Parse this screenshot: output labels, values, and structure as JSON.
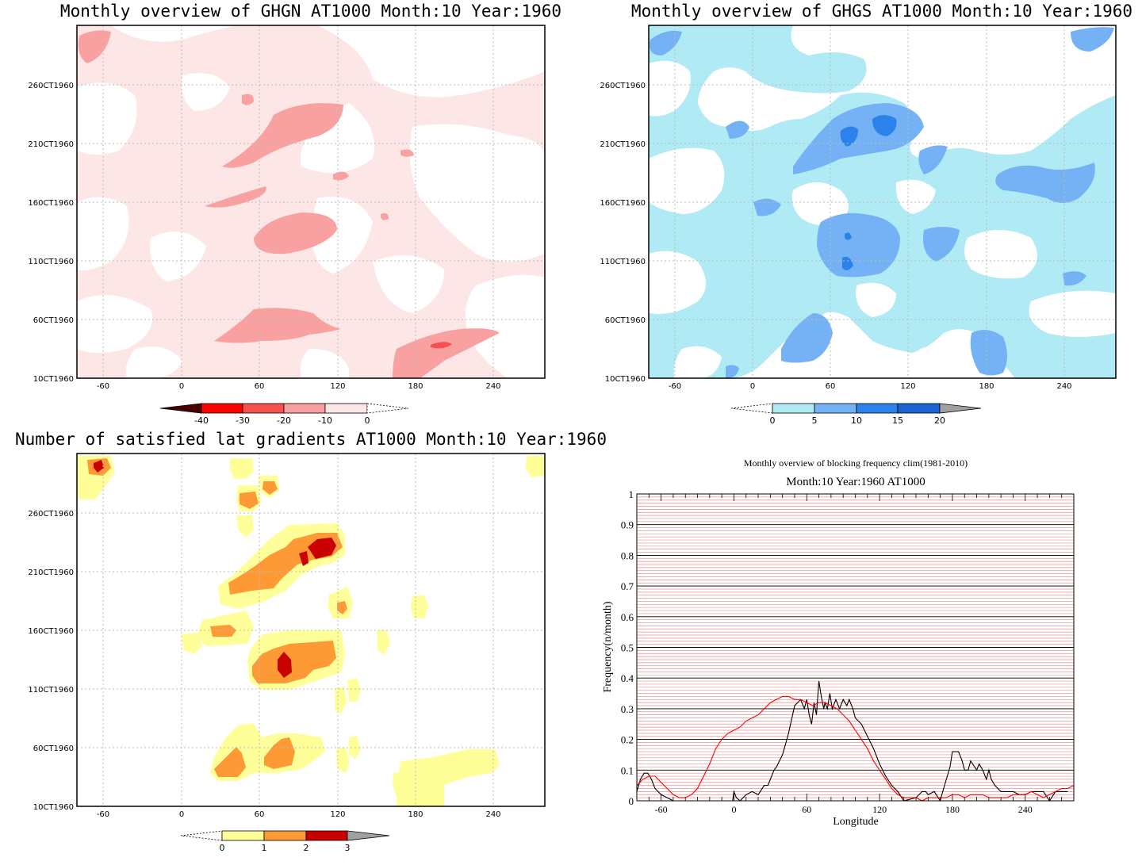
{
  "chart_data": [
    {
      "type": "heatmap",
      "title": "Monthly overview of GHGN AT1000 Month:10 Year:1960",
      "x_ticks": [
        -60,
        0,
        60,
        120,
        180,
        240
      ],
      "xlim": [
        -72,
        288
      ],
      "y_ticks": [
        "10CT1960",
        "60CT1960",
        "110CT1960",
        "160CT1960",
        "210CT1960",
        "260CT1960"
      ],
      "ylim": [
        1,
        31
      ],
      "colorbar": {
        "labels": [
          "-40",
          "-30",
          "-20",
          "-10",
          "0"
        ],
        "colors": [
          "#4a0000",
          "#ff0000",
          "#f65050",
          "#f9a0a0",
          "#fde6e6",
          "#ffffff"
        ]
      },
      "grid": true
    },
    {
      "type": "heatmap",
      "title": "Monthly overview of GHGS AT1000 Month:10 Year:1960",
      "x_ticks": [
        -60,
        0,
        60,
        120,
        180,
        240
      ],
      "xlim": [
        -72,
        288
      ],
      "y_ticks": [
        "10CT1960",
        "60CT1960",
        "110CT1960",
        "160CT1960",
        "210CT1960",
        "260CT1960"
      ],
      "ylim": [
        1,
        31
      ],
      "colorbar": {
        "labels": [
          "0",
          "5",
          "10",
          "15",
          "20"
        ],
        "colors": [
          "#ffffff",
          "#afeaf5",
          "#75b2f5",
          "#2b82ea",
          "#1b62d2",
          "#a0a0a0"
        ]
      },
      "grid": true
    },
    {
      "type": "heatmap",
      "title": "Number of satisfied lat gradients AT1000 Month:10 Year:1960",
      "x_ticks": [
        -60,
        0,
        60,
        120,
        180,
        240
      ],
      "xlim": [
        -72,
        288
      ],
      "y_ticks": [
        "10CT1960",
        "60CT1960",
        "110CT1960",
        "160CT1960",
        "210CT1960",
        "260CT1960"
      ],
      "ylim": [
        1,
        31
      ],
      "colorbar": {
        "labels": [
          "0",
          "1",
          "2",
          "3"
        ],
        "colors": [
          "#ffffff",
          "#ffff99",
          "#fd9a36",
          "#c80000",
          "#a0a0a0"
        ]
      },
      "grid": true
    },
    {
      "type": "line",
      "suptitle": "Monthly overview of blocking frequency clim(1981-2010)",
      "title": "Month:10 Year:1960  AT1000",
      "xlabel": "Longitude",
      "ylabel": "Frequency(n/month)",
      "xlim": [
        -80,
        280
      ],
      "ylim": [
        0,
        1
      ],
      "x_ticks": [
        -60,
        0,
        60,
        120,
        180,
        240
      ],
      "y_ticks": [
        0,
        0.1,
        0.2,
        0.3,
        0.4,
        0.5,
        0.6,
        0.7,
        0.8,
        0.9,
        1
      ],
      "series": [
        {
          "color": "#000000",
          "x": [
            -80,
            -77,
            -74,
            -71,
            -68,
            -65,
            -60,
            -50,
            -40,
            -30,
            -20,
            -10,
            -1,
            0,
            2,
            5,
            10,
            15,
            20,
            25,
            28,
            33,
            35,
            40,
            45,
            50,
            55,
            58,
            60,
            62,
            64,
            66,
            68,
            70,
            72,
            74,
            75,
            77,
            79,
            81,
            84,
            87,
            90,
            93,
            95,
            98,
            100,
            105,
            110,
            115,
            120,
            125,
            130,
            135,
            140,
            150,
            155,
            158,
            160,
            165,
            170,
            172,
            175,
            178,
            180,
            185,
            188,
            190,
            193,
            195,
            200,
            202,
            205,
            208,
            210,
            212,
            215,
            220,
            225,
            230,
            235,
            240,
            245,
            250,
            255,
            260,
            265,
            270,
            275
          ],
          "y": [
            0.03,
            0.07,
            0.09,
            0.09,
            0.07,
            0.04,
            0.02,
            0,
            0,
            0,
            0,
            0,
            0,
            0.03,
            0.01,
            0,
            0.02,
            0.03,
            0.02,
            0.05,
            0.05,
            0.1,
            0.11,
            0.15,
            0.22,
            0.31,
            0.33,
            0.3,
            0.33,
            0.28,
            0.25,
            0.32,
            0.28,
            0.39,
            0.34,
            0.3,
            0.32,
            0.3,
            0.35,
            0.3,
            0.33,
            0.3,
            0.33,
            0.31,
            0.33,
            0.3,
            0.27,
            0.25,
            0.21,
            0.17,
            0.12,
            0.08,
            0.05,
            0.03,
            0,
            0.01,
            0.03,
            0.03,
            0.02,
            0.03,
            0,
            0.03,
            0.07,
            0.11,
            0.16,
            0.16,
            0.13,
            0.1,
            0.1,
            0.13,
            0.1,
            0.12,
            0.1,
            0.07,
            0.1,
            0.07,
            0.05,
            0.03,
            0.03,
            0.03,
            0.02,
            0.02,
            0.03,
            0.03,
            0.03,
            0,
            0.03,
            0.03,
            0.03
          ]
        },
        {
          "color": "#ff0000",
          "x": [
            -80,
            -75,
            -70,
            -65,
            -60,
            -55,
            -50,
            -45,
            -40,
            -35,
            -30,
            -25,
            -20,
            -15,
            -10,
            -5,
            0,
            5,
            10,
            15,
            20,
            25,
            30,
            35,
            40,
            45,
            50,
            55,
            60,
            65,
            70,
            75,
            80,
            85,
            90,
            95,
            100,
            105,
            110,
            115,
            120,
            125,
            130,
            135,
            140,
            145,
            150,
            155,
            160,
            165,
            170,
            175,
            180,
            185,
            190,
            195,
            200,
            205,
            210,
            215,
            220,
            225,
            230,
            235,
            240,
            245,
            250,
            255,
            260,
            265,
            270,
            275,
            280
          ],
          "y": [
            0.05,
            0.07,
            0.08,
            0.08,
            0.06,
            0.04,
            0.02,
            0.01,
            0.01,
            0.02,
            0.04,
            0.08,
            0.12,
            0.17,
            0.2,
            0.22,
            0.23,
            0.24,
            0.26,
            0.27,
            0.28,
            0.3,
            0.32,
            0.33,
            0.34,
            0.34,
            0.33,
            0.33,
            0.32,
            0.31,
            0.32,
            0.32,
            0.31,
            0.3,
            0.28,
            0.26,
            0.23,
            0.2,
            0.17,
            0.13,
            0.1,
            0.07,
            0.04,
            0.02,
            0.01,
            0.01,
            0.01,
            0,
            0.01,
            0.01,
            0.01,
            0.01,
            0.02,
            0.02,
            0.01,
            0.02,
            0.02,
            0.02,
            0.01,
            0.01,
            0.01,
            0.01,
            0.02,
            0.02,
            0.02,
            0.03,
            0.02,
            0.01,
            0.02,
            0.03,
            0.04,
            0.04,
            0.05
          ]
        }
      ]
    }
  ]
}
